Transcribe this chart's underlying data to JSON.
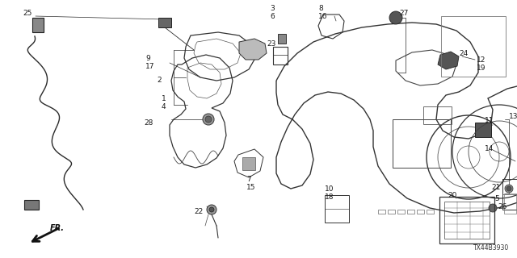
{
  "diagram_id": "TX44B3930",
  "bg_color": "#ffffff",
  "line_color": "#2a2a2a",
  "text_color": "#1a1a1a",
  "fig_width": 6.4,
  "fig_height": 3.2,
  "dpi": 100
}
